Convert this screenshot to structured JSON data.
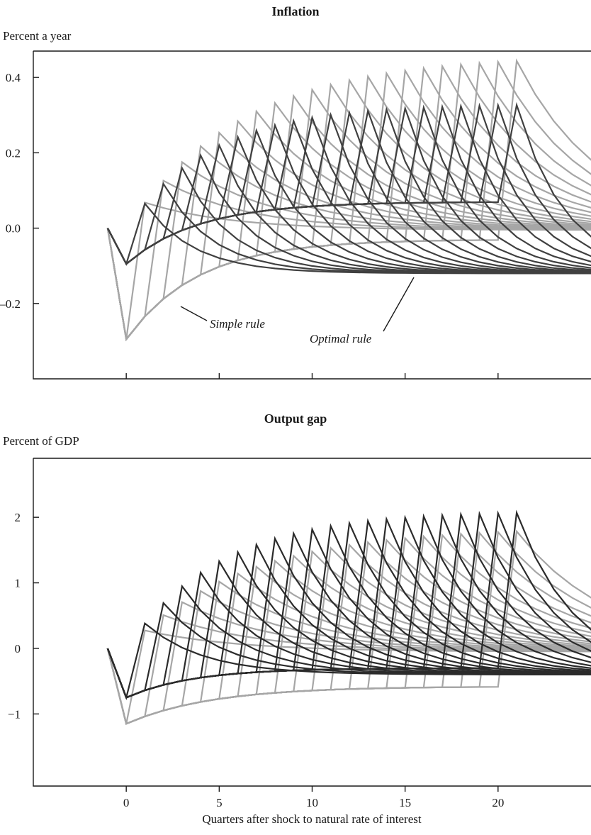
{
  "figure": {
    "xlabel": "Quarters after shock to natural rate of interest"
  },
  "chart_data": [
    {
      "type": "line",
      "title": "Inflation",
      "unit_label": "Percent a year",
      "xlabel": "",
      "ylabel": "Percent a year",
      "xlim": [
        -5,
        25
      ],
      "ylim": [
        -0.4,
        0.47
      ],
      "yticks": [
        -0.2,
        0.0,
        0.2,
        0.4
      ],
      "ytick_labels": [
        "–0.2",
        "0.0",
        "0.2",
        "0.4"
      ],
      "xticks": [
        0,
        5,
        10,
        15,
        20
      ],
      "xtick_labels": [],
      "grid": false,
      "legend": "none",
      "annotations": [
        {
          "text": "Simple rule",
          "points_to": {
            "x": 3,
            "y": -0.185
          }
        },
        {
          "text": "Optimal rule",
          "points_to": {
            "x": 15.4,
            "y": -0.095
          }
        }
      ],
      "series_families": [
        {
          "rule": "Simple rule",
          "color": "#a6a6a6",
          "shock_durations": [
            1,
            2,
            3,
            4,
            5,
            6,
            7,
            8,
            9,
            10,
            11,
            12,
            13,
            14,
            15,
            16,
            17,
            18,
            19,
            20,
            21
          ],
          "model": {
            "start": [
              -1,
              0.0
            ],
            "impact": [
              0,
              -0.295
            ],
            "during": {
              "asymptote": -0.03,
              "rate": 0.26
            },
            "peak": {
              "base": 0.46,
              "decay": 0.16
            },
            "after": {
              "end_value": -0.005,
              "rate": 0.22
            }
          }
        },
        {
          "rule": "Optimal rule",
          "color": "#404040",
          "shock_durations": [
            1,
            2,
            3,
            4,
            5,
            6,
            7,
            8,
            9,
            10,
            11,
            12,
            13,
            14,
            15,
            16,
            17,
            18,
            19,
            20,
            21
          ],
          "model": {
            "start": [
              -1,
              0.0
            ],
            "impact": [
              0,
              -0.095
            ],
            "during": {
              "asymptote": 0.07,
              "rate": 0.26
            },
            "peak": {
              "base": 0.33,
              "decay": 0.22
            },
            "after": {
              "end_value": -0.12,
              "rate": 0.38
            }
          }
        }
      ]
    },
    {
      "type": "line",
      "title": "Output gap",
      "unit_label": "Percent of GDP",
      "xlabel": "Quarters after shock to natural rate of interest",
      "ylabel": "Percent of GDP",
      "xlim": [
        -5,
        25
      ],
      "ylim": [
        -2.1,
        2.9
      ],
      "yticks": [
        -1,
        0,
        1,
        2
      ],
      "ytick_labels": [
        "−1",
        "0",
        "1",
        "2"
      ],
      "xticks": [
        0,
        5,
        10,
        15,
        20
      ],
      "xtick_labels": [
        "0",
        "5",
        "10",
        "15",
        "20"
      ],
      "grid": false,
      "legend": "none",
      "annotations": [],
      "series_families": [
        {
          "rule": "Simple rule",
          "color": "#a6a6a6",
          "shock_durations": [
            1,
            2,
            3,
            4,
            5,
            6,
            7,
            8,
            9,
            10,
            11,
            12,
            13,
            14,
            15,
            16,
            17,
            18,
            19,
            20,
            21
          ],
          "model": {
            "start": [
              -1,
              0.0
            ],
            "impact": [
              0,
              -1.15
            ],
            "during": {
              "asymptote": -0.58,
              "rate": 0.22
            },
            "peak": {
              "base": 1.85,
              "decay": 0.16
            },
            "after": {
              "end_value": -0.05,
              "rate": 0.2
            }
          }
        },
        {
          "rule": "Optimal rule",
          "color": "#2b2b2b",
          "shock_durations": [
            1,
            2,
            3,
            4,
            5,
            6,
            7,
            8,
            9,
            10,
            11,
            12,
            13,
            14,
            15,
            16,
            17,
            18,
            19,
            20,
            21
          ],
          "model": {
            "start": [
              -1,
              0.0
            ],
            "impact": [
              0,
              -0.75
            ],
            "during": {
              "asymptote": -0.3,
              "rate": 0.28
            },
            "peak": {
              "base": 2.1,
              "decay": 0.2
            },
            "after": {
              "end_value": -0.4,
              "rate": 0.32
            }
          }
        }
      ]
    }
  ]
}
